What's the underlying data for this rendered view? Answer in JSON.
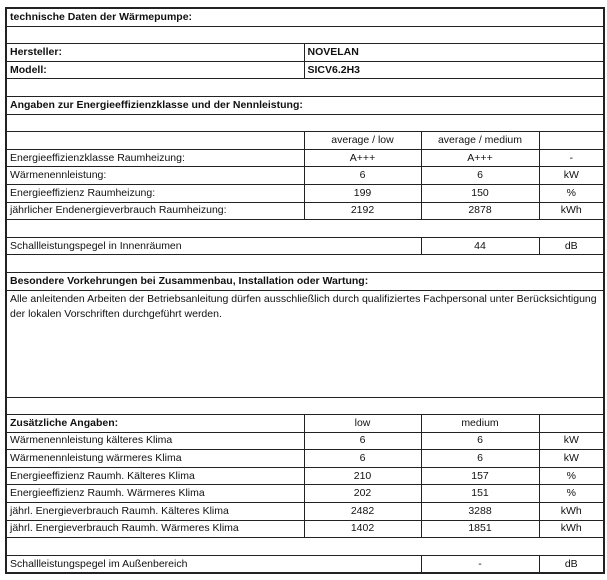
{
  "title": "technische Daten der Wärmepumpe:",
  "manufacturer": {
    "label": "Hersteller:",
    "value": "NOVELAN"
  },
  "model": {
    "label": "Modell:",
    "value": "SICV6.2H3"
  },
  "efficiency_section": {
    "heading": "Angaben zur Energieeffizienzklasse und der Nennleistung:",
    "columns": [
      "average / low",
      "average / medium"
    ],
    "rows": [
      {
        "label": "Energieeffizienzklasse Raumheizung:",
        "low": "A+++",
        "medium": "A+++",
        "unit": "-"
      },
      {
        "label": "Wärmenennleistung:",
        "low": "6",
        "medium": "6",
        "unit": "kW"
      },
      {
        "label": "Energieeffizienz Raumheizung:",
        "low": "199",
        "medium": "150",
        "unit": "%"
      },
      {
        "label": "jährlicher Endenergieverbrauch Raumheizung:",
        "low": "2192",
        "medium": "2878",
        "unit": "kWh"
      }
    ],
    "indoor_noise": {
      "label": "Schallleistungspegel in Innenräumen",
      "value": "44",
      "unit": "dB"
    }
  },
  "precautions": {
    "heading": "Besondere Vorkehrungen bei Zusammenbau, Installation oder Wartung:",
    "text": "Alle anleitenden Arbeiten der Betriebsanleitung dürfen ausschließlich durch qualifiziertes Fachpersonal unter Berücksichtigung der lokalen Vorschriften durchgeführt werden."
  },
  "additional": {
    "heading": "Zusätzliche Angaben:",
    "columns": [
      "low",
      "medium"
    ],
    "rows": [
      {
        "label": "Wärmenennleistung kälteres Klima",
        "low": "6",
        "medium": "6",
        "unit": "kW"
      },
      {
        "label": "Wärmenennleistung wärmeres Klima",
        "low": "6",
        "medium": "6",
        "unit": "kW"
      },
      {
        "label": "Energieeffizienz Raumh. Kälteres Klima",
        "low": "210",
        "medium": "157",
        "unit": "%"
      },
      {
        "label": "Energieeffizienz Raumh. Wärmeres Klima",
        "low": "202",
        "medium": "151",
        "unit": "%"
      },
      {
        "label": "jährl. Energieverbrauch Raumh. Kälteres Klima",
        "low": "2482",
        "medium": "3288",
        "unit": "kWh"
      },
      {
        "label": "jährl. Energieverbrauch Raumh. Wärmeres Klima",
        "low": "1402",
        "medium": "1851",
        "unit": "kWh"
      }
    ],
    "outdoor_noise": {
      "label": "Schallleistungspegel im Außenbereich",
      "value": "-",
      "unit": "dB"
    }
  }
}
